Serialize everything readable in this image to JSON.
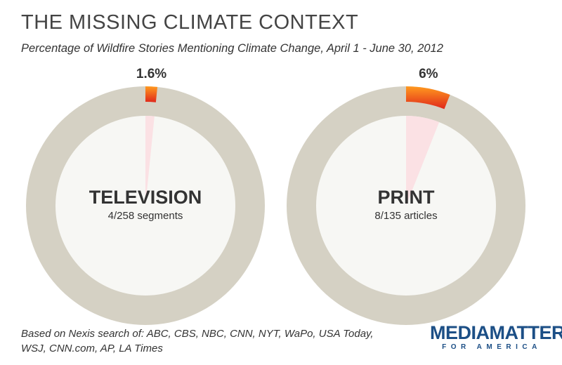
{
  "header": {
    "title": "THE MISSING CLIMATE CONTEXT",
    "subtitle": "Percentage of Wildfire Stories Mentioning Climate Change, April 1 - June 30, 2012"
  },
  "chart_data": {
    "type": "pie",
    "title": "THE MISSING CLIMATE CONTEXT",
    "subtitle": "Percentage of Wildfire Stories Mentioning Climate Change, April 1 - June 30, 2012",
    "series": [
      {
        "name": "TELEVISION",
        "detail": "4/258 segments",
        "percent": 1.6,
        "value_label": "1.6%",
        "numerator": 4,
        "denominator": 258
      },
      {
        "name": "PRINT",
        "detail": "8/135 articles",
        "percent": 6,
        "value_label": "6%",
        "numerator": 8,
        "denominator": 135
      }
    ],
    "colors": {
      "ring": "#d5d1c4",
      "inner": "#f7f7f4",
      "highlight_start": "#ff9a1f",
      "highlight_end": "#e0271b",
      "wedge": "#fbe1e4",
      "label": "#333333"
    }
  },
  "footer": {
    "note_line1": "Based on Nexis search of: ABC, CBS, NBC, CNN, NYT, WaPo, USA Today,",
    "note_line2": "WSJ, CNN.com, AP, LA Times",
    "logo_main": "MEDIAMATTERS",
    "logo_sub": "FOR AMERICA"
  }
}
